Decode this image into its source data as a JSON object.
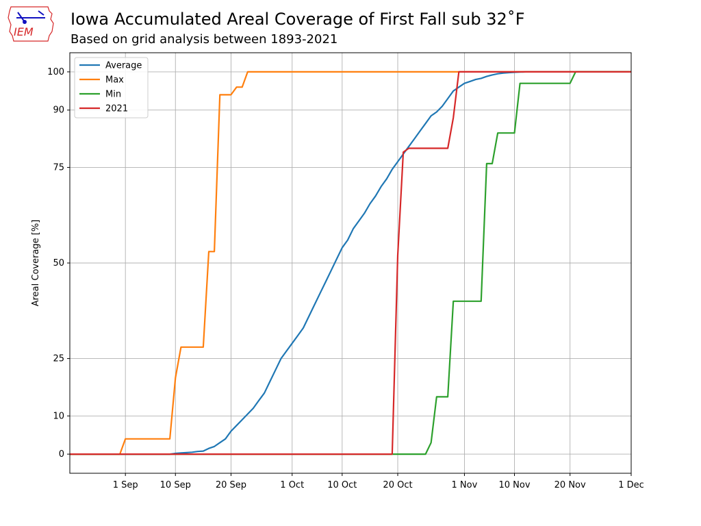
{
  "header": {
    "title": "Iowa Accumulated Areal Coverage of First Fall sub 32˚F",
    "subtitle": "Based on grid analysis between 1893-2021"
  },
  "logo": {
    "text": "IEM",
    "color": "#d62728"
  },
  "chart_data": {
    "type": "line",
    "ylabel": "Areal Coverage [%]",
    "xlabel": "",
    "ylim": [
      -5,
      105
    ],
    "xlim": [
      "Aug 22",
      "Dec 1"
    ],
    "yticks": [
      0,
      10,
      25,
      50,
      75,
      90,
      100
    ],
    "xticks": [
      {
        "label": "1 Sep",
        "day": 10
      },
      {
        "label": "10 Sep",
        "day": 19
      },
      {
        "label": "20 Sep",
        "day": 29
      },
      {
        "label": "1 Oct",
        "day": 40
      },
      {
        "label": "10 Oct",
        "day": 49
      },
      {
        "label": "20 Oct",
        "day": 59
      },
      {
        "label": "1 Nov",
        "day": 71
      },
      {
        "label": "10 Nov",
        "day": 80
      },
      {
        "label": "20 Nov",
        "day": 90
      },
      {
        "label": "1 Dec",
        "day": 101
      }
    ],
    "grid": true,
    "legend_position": "top-left",
    "series": [
      {
        "name": "Average",
        "color": "#1f77b4",
        "x": [
          0,
          18,
          19,
          20,
          21,
          22,
          23,
          24,
          25,
          26,
          27,
          28,
          29,
          30,
          31,
          32,
          33,
          34,
          35,
          36,
          37,
          38,
          39,
          40,
          41,
          42,
          43,
          44,
          45,
          46,
          47,
          48,
          49,
          50,
          51,
          52,
          53,
          54,
          55,
          56,
          57,
          58,
          59,
          60,
          61,
          62,
          63,
          64,
          65,
          66,
          67,
          68,
          69,
          70,
          71,
          72,
          73,
          74,
          75,
          76,
          77,
          78,
          79,
          80,
          81,
          82,
          101
        ],
        "y": [
          0,
          0,
          0.2,
          0.3,
          0.4,
          0.5,
          0.7,
          0.8,
          1.5,
          2,
          3,
          4,
          6,
          7.5,
          9,
          10.5,
          12,
          14,
          16,
          19,
          22,
          25,
          27,
          29,
          31,
          33,
          36,
          39,
          42,
          45,
          48,
          51,
          54,
          56,
          59,
          61,
          63,
          65.5,
          67.5,
          70,
          72,
          74.5,
          76.5,
          78.5,
          80.5,
          82.5,
          84.5,
          86.5,
          88.5,
          89.5,
          91,
          93,
          95,
          96,
          97,
          97.5,
          98,
          98.3,
          98.8,
          99.2,
          99.5,
          99.7,
          99.8,
          99.9,
          99.95,
          100,
          100
        ]
      },
      {
        "name": "Max",
        "color": "#ff7f0e",
        "x": [
          0,
          9,
          10,
          18,
          19,
          20,
          24,
          25,
          26,
          27,
          29,
          30,
          31,
          32,
          33,
          34,
          35,
          101
        ],
        "y": [
          0,
          0,
          4,
          4,
          20,
          28,
          28,
          53,
          53,
          94,
          94,
          96,
          96,
          100,
          100,
          100,
          100,
          100
        ]
      },
      {
        "name": "Min",
        "color": "#2ca02c",
        "x": [
          0,
          64,
          65,
          66,
          68,
          69,
          74,
          75,
          76,
          77,
          80,
          81,
          90,
          91,
          101
        ],
        "y": [
          0,
          0,
          3,
          15,
          15,
          40,
          40,
          76,
          76,
          84,
          84,
          97,
          97,
          100,
          100
        ]
      },
      {
        "name": "2021",
        "color": "#d62728",
        "x": [
          0,
          58,
          59,
          60,
          61,
          68,
          69,
          70,
          101
        ],
        "y": [
          0,
          0,
          52,
          79,
          80,
          80,
          88,
          100,
          100
        ]
      }
    ]
  }
}
